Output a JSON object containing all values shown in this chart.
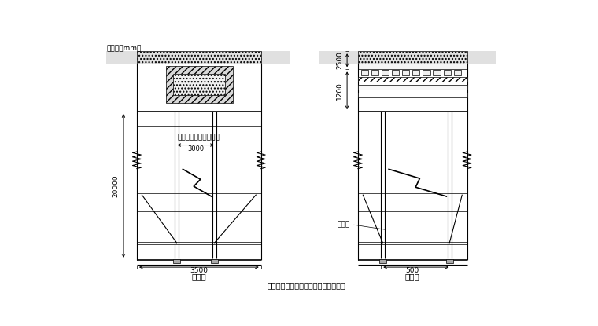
{
  "unit_text": "单位：（mm）",
  "label_20000": "20000",
  "label_2500": "2500",
  "label_1200": "1200",
  "label_3000": "3000",
  "label_3500": "3500",
  "label_500": "500",
  "text_section": "断面图",
  "text_side": "侧面图",
  "text_note": "多道承重立杆图中省略",
  "text_bottom": "多根承重立杆，木方支撑垂直于梁截面",
  "text_shuang": "双立杆"
}
